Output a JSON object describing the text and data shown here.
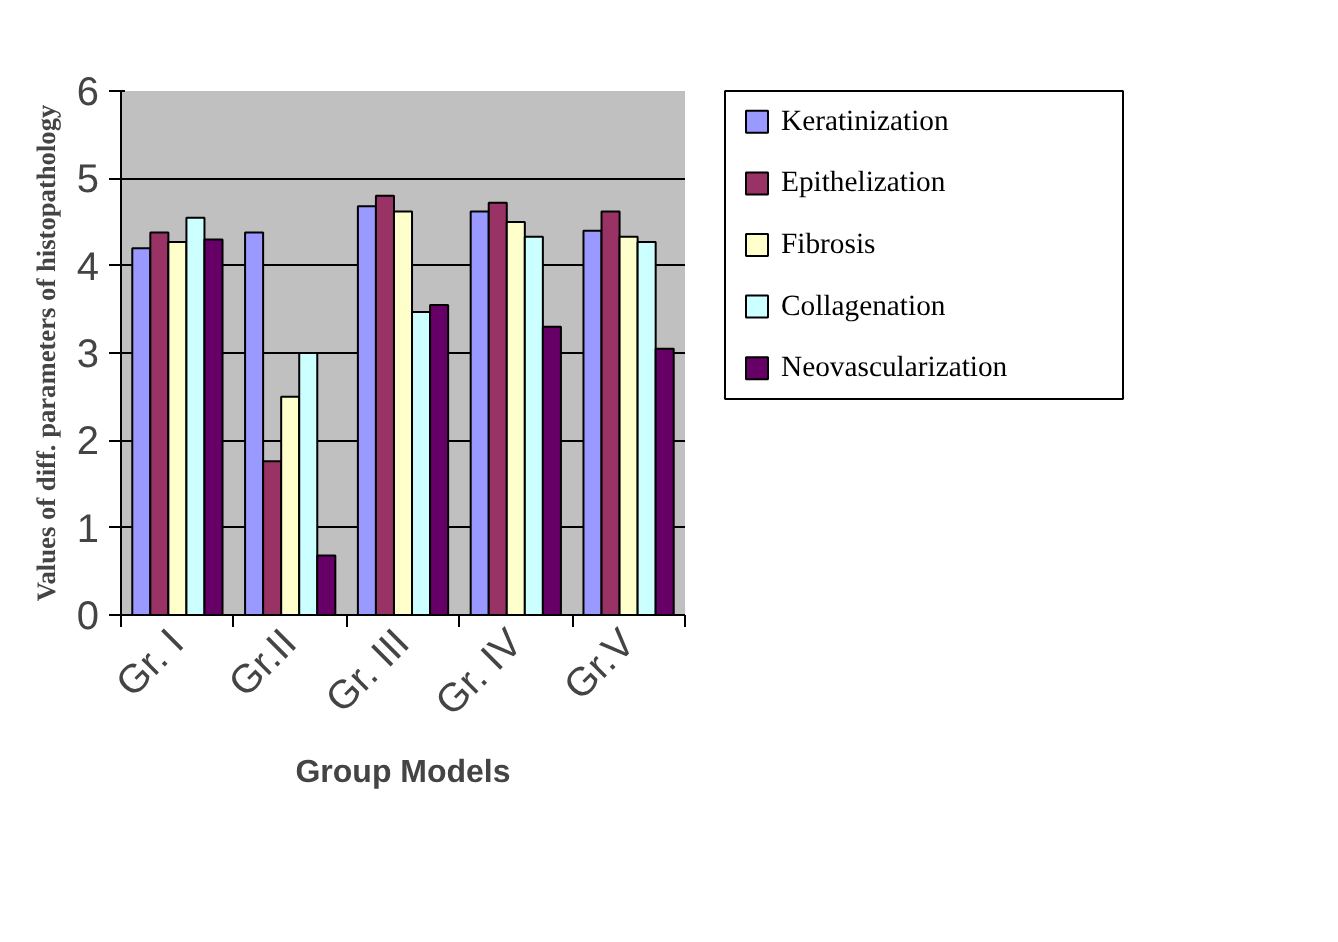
{
  "chart_data": {
    "type": "bar",
    "xlabel": "Group Models",
    "ylabel": "Values of diff. parameters of histopathology",
    "categories": [
      "Gr. I",
      "Gr.II",
      "Gr. III",
      "Gr. IV",
      "Gr.V"
    ],
    "series": [
      {
        "name": "Keratinization",
        "color": "#9999ff",
        "values": [
          4.2,
          4.38,
          4.68,
          4.62,
          4.4
        ]
      },
      {
        "name": "Epithelization",
        "color": "#993366",
        "values": [
          4.38,
          1.76,
          4.8,
          4.72,
          4.62
        ]
      },
      {
        "name": "Fibrosis",
        "color": "#ffffcc",
        "values": [
          4.27,
          2.5,
          4.62,
          4.5,
          4.33
        ]
      },
      {
        "name": "Collagenation",
        "color": "#ccffff",
        "values": [
          4.55,
          3.0,
          3.47,
          4.33,
          4.27
        ]
      },
      {
        "name": "Neovascularization",
        "color": "#660066",
        "values": [
          4.3,
          0.68,
          3.55,
          3.3,
          3.05
        ]
      }
    ],
    "ylim": [
      0,
      6
    ],
    "yticks": [
      0,
      1,
      2,
      3,
      4,
      5,
      6
    ],
    "grid": "y",
    "legend": "right"
  }
}
